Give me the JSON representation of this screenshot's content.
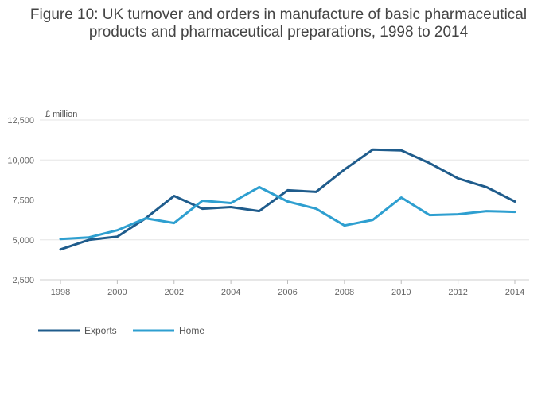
{
  "chart_data": {
    "type": "line",
    "title_lines": [
      "Figure 10: UK turnover and orders in manufacture of basic pharmaceutical",
      "products and pharmaceutical preparations, 1998 to 2014"
    ],
    "y_unit_label": "£ million",
    "x": [
      1998,
      1999,
      2000,
      2001,
      2002,
      2003,
      2004,
      2005,
      2006,
      2007,
      2008,
      2009,
      2010,
      2011,
      2012,
      2013,
      2014
    ],
    "x_ticks": [
      "1998",
      "2000",
      "2002",
      "2004",
      "2006",
      "2008",
      "2010",
      "2012",
      "2014"
    ],
    "y_ticks": [
      "2,500",
      "5,000",
      "7,500",
      "10,000",
      "12,500"
    ],
    "ylim": [
      2500,
      12500
    ],
    "xlim": [
      1998,
      2014
    ],
    "grid": true,
    "legend_position": "bottom-left",
    "series": [
      {
        "name": "Exports",
        "color": "#1f5c8c",
        "values": [
          4400,
          5000,
          5200,
          6350,
          7750,
          6950,
          7050,
          6800,
          8100,
          8000,
          9400,
          10650,
          10600,
          9800,
          8850,
          8300,
          7400
        ]
      },
      {
        "name": "Home",
        "color": "#2e9fd0",
        "values": [
          5050,
          5150,
          5600,
          6350,
          6050,
          7450,
          7300,
          8300,
          7400,
          6950,
          5900,
          6250,
          7650,
          6550,
          6600,
          6800,
          6750
        ]
      }
    ]
  }
}
